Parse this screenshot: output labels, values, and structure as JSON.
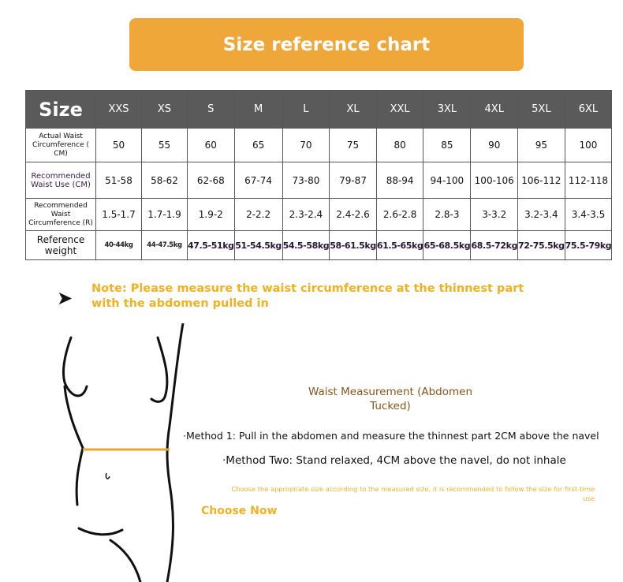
{
  "banner": {
    "title": "Size reference chart",
    "color": "#f0a73a"
  },
  "table": {
    "header_label": "Size",
    "sizes": [
      "XXS",
      "XS",
      "S",
      "M",
      "L",
      "XL",
      "XXL",
      "3XL",
      "4XL",
      "5XL",
      "6XL"
    ],
    "rows": [
      {
        "label": "Actual Waist Circumference ( CM)",
        "values": [
          "50",
          "55",
          "60",
          "65",
          "70",
          "75",
          "80",
          "85",
          "90",
          "95",
          "100"
        ]
      },
      {
        "label": "Recommended Waist Use (CM)",
        "values": [
          "51-58",
          "58-62",
          "62-68",
          "67-74",
          "73-80",
          "79-87",
          "88-94",
          "94-100",
          "100-106",
          "106-112",
          "112-118"
        ]
      },
      {
        "label": "Recommended Waist Circumference (R)",
        "values": [
          "1.5-1.7",
          "1.7-1.9",
          "1.9-2",
          "2-2.2",
          "2.3-2.4",
          "2.4-2.6",
          "2.6-2.8",
          "2.8-3",
          "3-3.2",
          "3.2-3.4",
          "3.4-3.5"
        ]
      },
      {
        "label": "Reference weight",
        "values": [
          "40-44kg",
          "44-47.5kg",
          "47.5-51kg",
          "51-54.5kg",
          "54.5-58kg",
          "58-61.5kg",
          "61.5-65kg",
          "65-68.5kg",
          "68.5-72kg",
          "72-75.5kg",
          "75.5-79kg"
        ]
      }
    ]
  },
  "note": "Note: Please measure the waist circumference at the thinnest part with the abdomen pulled in",
  "measurement": {
    "title": "Waist Measurement (Abdomen Tucked)",
    "method1": "·Method 1: Pull in the abdomen and measure the thinnest part 2CM above the navel",
    "method2": "·Method Two: Stand relaxed, 4CM above the navel, do not inhale",
    "advice_line1": "Choose the appropriate size according to the measured size, it is recommended to follow the size for first-time",
    "advice_line2": "use",
    "choose_now": "Choose Now"
  },
  "colors": {
    "accent": "#f3b021",
    "header_bg": "#5a5a5a",
    "title_brown": "#8a5518"
  }
}
